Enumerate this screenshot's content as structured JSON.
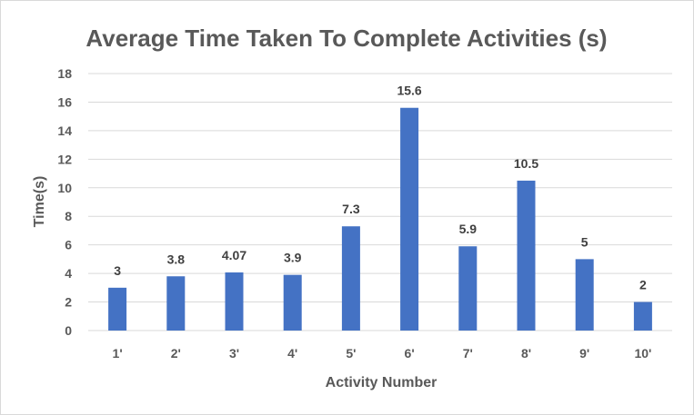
{
  "chart_data": {
    "type": "bar",
    "title": "Average Time Taken To Complete Activities (s)",
    "xlabel": "Activity Number",
    "ylabel": "Time(s)",
    "categories": [
      "1'",
      "2'",
      "3'",
      "4'",
      "5'",
      "6'",
      "7'",
      "8'",
      "9'",
      "10'"
    ],
    "values": [
      3,
      3.8,
      4.07,
      3.9,
      7.3,
      15.6,
      5.9,
      10.5,
      5,
      2
    ],
    "value_labels": [
      "3",
      "3.8",
      "4.07",
      "3.9",
      "7.3",
      "15.6",
      "5.9",
      "10.5",
      "5",
      "2"
    ],
    "ylim": [
      0,
      18
    ],
    "yticks": [
      "0",
      "2",
      "4",
      "6",
      "8",
      "10",
      "12",
      "14",
      "16",
      "18"
    ],
    "grid": true,
    "legend": "none",
    "colors": {
      "bar": "#4472c4",
      "grid": "#d9d9d9",
      "text": "#595959"
    }
  }
}
